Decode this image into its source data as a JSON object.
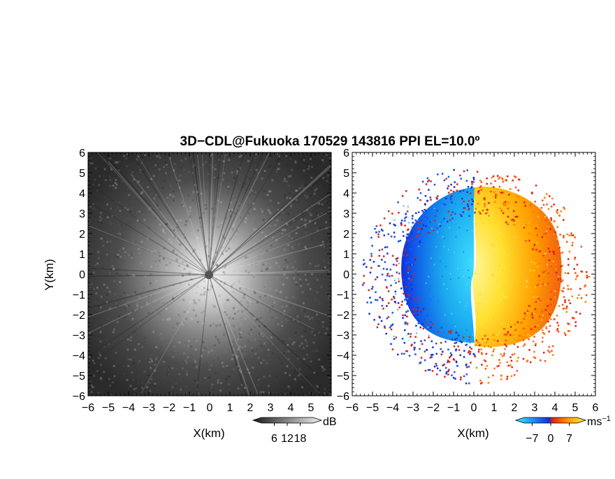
{
  "chart_data": {
    "title": "3D−CDL@Fukuoka 170529 143816 PPI EL=10.0º",
    "type": "heatmap",
    "panels": [
      {
        "name": "reflectivity",
        "type": "heatmap",
        "xlabel": "X(km)",
        "ylabel": "Y(km)",
        "xlim": [
          -6,
          6
        ],
        "ylim": [
          -6,
          6
        ],
        "x_ticks": [
          "−6",
          "−5",
          "−4",
          "−3",
          "−2",
          "−1",
          "0",
          "1",
          "2",
          "3",
          "4",
          "5",
          "6"
        ],
        "y_ticks": [
          "6",
          "5",
          "4",
          "3",
          "2",
          "1",
          "0",
          "−1",
          "−2",
          "−3",
          "−4",
          "−5",
          "−6"
        ],
        "colormap": "grayscale",
        "colorbar": {
          "unit": "dB",
          "ticks": [
            "6",
            "12",
            "18"
          ],
          "min": 0,
          "max": 24
        }
      },
      {
        "name": "doppler-velocity",
        "type": "heatmap",
        "xlabel": "X(km)",
        "xlim": [
          -6,
          6
        ],
        "ylim": [
          -6,
          6
        ],
        "x_ticks": [
          "−6",
          "−5",
          "−4",
          "−3",
          "−2",
          "−1",
          "0",
          "1",
          "2",
          "3",
          "4",
          "5",
          "6"
        ],
        "y_ticks": [
          "6",
          "5",
          "4",
          "3",
          "2",
          "1",
          "0",
          "−1",
          "−2",
          "−3",
          "−4",
          "−5",
          "−6"
        ],
        "colormap": "cyan-blue-red-yellow",
        "colorbar": {
          "unit": "ms",
          "unit_sup": "−1",
          "ticks": [
            "−7",
            "0",
            "7"
          ],
          "min": -10,
          "max": 10
        }
      }
    ]
  },
  "colors": {
    "cyan": "#20c8f0",
    "blue": "#1030e0",
    "red": "#e02010",
    "orange": "#ff9a00",
    "yellow": "#ffee40"
  }
}
